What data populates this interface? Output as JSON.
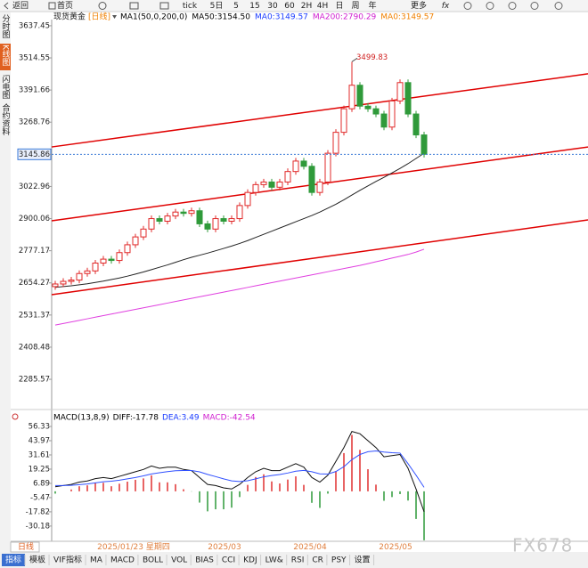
{
  "toolbar": {
    "items": [
      "返回",
      "首页",
      "tick",
      "5日",
      "5",
      "15",
      "30",
      "60",
      "2H",
      "4H",
      "日",
      "周",
      "年",
      "更多",
      "fx"
    ]
  },
  "sidebar": [
    "分时图",
    "K线图",
    "闪电图",
    "合约资料"
  ],
  "chart_data": [
    {
      "type": "candlestick",
      "title": "现货黄金",
      "period": "[日线]",
      "legend": [
        {
          "name": "MA1(50,0,200,0)",
          "color": "#000000"
        },
        {
          "name": "MA50:3154.50",
          "color": "#000000"
        },
        {
          "name": "MA0:3149.57",
          "color": "#1a3cff"
        },
        {
          "name": "MA200:2790.29",
          "color": "#d020d0"
        },
        {
          "name": "MA0:3149.57",
          "color": "#f08000"
        }
      ],
      "open": [
        2640,
        2650,
        2660,
        2665,
        2690,
        2700,
        2730,
        2745,
        2740,
        2770,
        2800,
        2830,
        2860,
        2900,
        2890,
        2910,
        2925,
        2920,
        2930,
        2880,
        2860,
        2900,
        2890,
        2900,
        2950,
        3000,
        3030,
        3040,
        3020,
        3040,
        3080,
        3120,
        3100,
        3000,
        3040,
        3150,
        3230,
        3320,
        3410,
        3330,
        3320,
        3300,
        3250,
        3350,
        3420,
        3300,
        3220
      ],
      "high": [
        2662,
        2672,
        2677,
        2702,
        2712,
        2742,
        2757,
        2757,
        2782,
        2812,
        2842,
        2872,
        2912,
        2912,
        2922,
        2937,
        2937,
        2942,
        2942,
        2892,
        2912,
        2912,
        2912,
        2962,
        3012,
        3042,
        3052,
        3052,
        3052,
        3092,
        3132,
        3132,
        3112,
        3052,
        3162,
        3242,
        3332,
        3499.83,
        3422,
        3342,
        3332,
        3312,
        3362,
        3432,
        3432,
        3312,
        3232
      ],
      "low": [
        2628,
        2638,
        2648,
        2653,
        2678,
        2688,
        2718,
        2728,
        2728,
        2758,
        2788,
        2818,
        2848,
        2878,
        2878,
        2898,
        2908,
        2908,
        2868,
        2848,
        2848,
        2878,
        2878,
        2888,
        2938,
        2988,
        3018,
        3008,
        3008,
        3028,
        3068,
        3088,
        2988,
        2988,
        3028,
        3138,
        3218,
        3308,
        3318,
        3308,
        3288,
        3238,
        3238,
        3338,
        3288,
        3208,
        3134
      ],
      "close": [
        2650,
        2660,
        2665,
        2690,
        2700,
        2730,
        2745,
        2740,
        2770,
        2800,
        2830,
        2860,
        2900,
        2890,
        2910,
        2925,
        2920,
        2930,
        2880,
        2860,
        2900,
        2890,
        2900,
        2950,
        3000,
        3030,
        3040,
        3020,
        3040,
        3080,
        3120,
        3100,
        3000,
        3040,
        3150,
        3230,
        3320,
        3410,
        3330,
        3320,
        3300,
        3250,
        3350,
        3420,
        3300,
        3220,
        3146
      ],
      "up_color": "#e02828",
      "down_color": "#2f9a3a",
      "lines": [
        {
          "color": "#222222",
          "values": [
            2637,
            2640,
            2643,
            2647,
            2651,
            2656,
            2661,
            2667,
            2673,
            2680,
            2688,
            2696,
            2705,
            2714,
            2723,
            2733,
            2743,
            2752,
            2760,
            2768,
            2777,
            2786,
            2795,
            2805,
            2816,
            2828,
            2840,
            2852,
            2864,
            2876,
            2888,
            2900,
            2912,
            2925,
            2940,
            2955,
            2972,
            2990,
            3008,
            3025,
            3042,
            3058,
            3075,
            3092,
            3110,
            3130,
            3150
          ]
        },
        {
          "color": "#e040e0",
          "values": [
            2493,
            2499,
            2505,
            2511,
            2517,
            2523,
            2529,
            2535,
            2541,
            2547,
            2553,
            2559,
            2565,
            2571,
            2577,
            2583,
            2589,
            2595,
            2601,
            2607,
            2613,
            2619,
            2625,
            2631,
            2637,
            2643,
            2649,
            2655,
            2661,
            2667,
            2673,
            2679,
            2685,
            2691,
            2697,
            2703,
            2709,
            2715,
            2721,
            2728,
            2735,
            2742,
            2749,
            2756,
            2763,
            2772,
            2783
          ]
        }
      ],
      "trendlines": {
        "color": "#e00000",
        "values": [
          [
            3174,
            3453.6
          ],
          [
            2891.8,
            3174
          ],
          [
            2609,
            2895
          ]
        ]
      },
      "last_price": 3145.86,
      "last_price_color": "#3a7ad8",
      "ylim": [
        2170,
        3661
      ],
      "yticks": [
        3637.45,
        3514.55,
        3391.66,
        3268.76,
        3145.86,
        3022.96,
        2900.06,
        2777.17,
        2654.27,
        2531.37,
        2408.48,
        2285.57
      ],
      "cursor_label": "2025/01/23 星期四",
      "xlabels": [
        "2025/03",
        "2025/04",
        "2025/05"
      ]
    },
    {
      "type": "macd",
      "legend": [
        {
          "name": "MACD(13,8,9)",
          "color": "#000000"
        },
        {
          "name": "DIFF:-17.78",
          "color": "#000000"
        },
        {
          "name": "DEA:3.49",
          "color": "#1a3cff"
        },
        {
          "name": "MACD:-42.54",
          "color": "#d020d0"
        }
      ],
      "diff": [
        4,
        5,
        6,
        8,
        9,
        11,
        12,
        11,
        13,
        15,
        17,
        19,
        22,
        20,
        21,
        21,
        19,
        18,
        12,
        6,
        5,
        3,
        2,
        6,
        12,
        17,
        20,
        18,
        18,
        21,
        24,
        21,
        12,
        8,
        14,
        26,
        38,
        52,
        50,
        44,
        38,
        30,
        31,
        32,
        20,
        2,
        -17.78
      ],
      "dea": [
        5,
        5,
        5.2,
        5.8,
        6.4,
        7.3,
        8.3,
        8.8,
        9.7,
        10.8,
        12,
        13.4,
        15.1,
        16.1,
        17.1,
        17.9,
        18.1,
        18.1,
        16.9,
        14.7,
        12.8,
        10.8,
        9.1,
        8.5,
        9.2,
        10.8,
        12.6,
        13.7,
        14.6,
        15.9,
        17.5,
        18.2,
        17,
        15.2,
        15,
        17.2,
        21.4,
        27.5,
        32,
        34.4,
        35.1,
        34.1,
        33.5,
        33.2,
        24,
        14,
        3.49
      ],
      "hist": [
        -2,
        0,
        1.6,
        4.4,
        5.2,
        7.4,
        7.4,
        4.4,
        6.6,
        8.4,
        10,
        11.2,
        13.8,
        7.8,
        7.8,
        6.2,
        1.8,
        -0.2,
        -9.8,
        -17.4,
        -15.6,
        -15.6,
        -14.2,
        -5,
        5.6,
        12.4,
        14.8,
        8.6,
        6.8,
        10.2,
        13,
        5.6,
        -10,
        -14.4,
        -2,
        17.6,
        33.2,
        49,
        36,
        19.2,
        5.8,
        -8.2,
        -5,
        -2.4,
        -8,
        -24,
        -42.54
      ],
      "diff_color": "#111111",
      "dea_color": "#3050ff",
      "pos_color": "#e03030",
      "neg_color": "#2f9a3a",
      "ylim": [
        -43.4,
        63.3
      ],
      "yticks": [
        56.33,
        43.97,
        31.61,
        19.25,
        6.89,
        -5.47,
        -17.82,
        -30.18
      ]
    }
  ],
  "bottom_tab": "日线",
  "indicator_tabs": [
    "指标",
    "模板",
    "VIF指标",
    "MA",
    "MACD",
    "BOLL",
    "VOL",
    "BIAS",
    "CCI",
    "KDJ",
    "LW&",
    "RSI",
    "CR",
    "PSY",
    "设置"
  ],
  "watermark": "FX678"
}
